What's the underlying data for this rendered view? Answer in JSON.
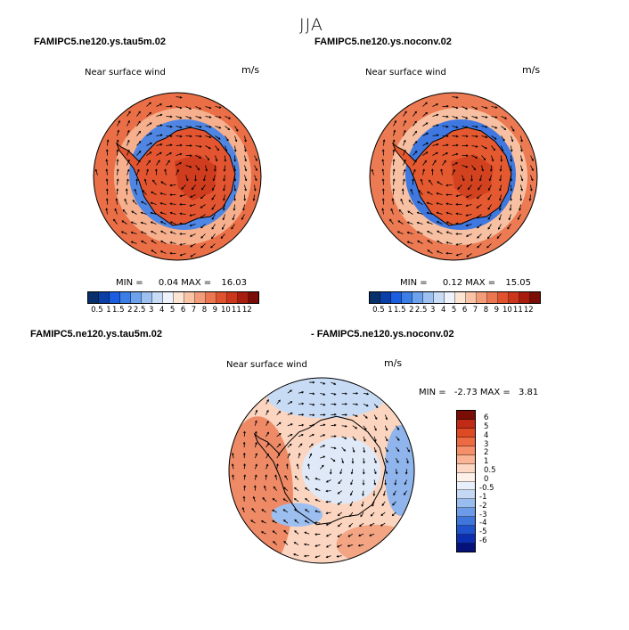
{
  "season": "JJA",
  "panels": [
    {
      "title": "FAMIPC5.ne120.ys.tau5m.02",
      "field": "Near surface wind",
      "units": "m/s",
      "min_label": "MIN =",
      "min": "0.04",
      "max_label": "MAX =",
      "max": "16.03"
    },
    {
      "title": "FAMIPC5.ne120.ys.noconv.02",
      "field": "Near surface wind",
      "units": "m/s",
      "min_label": "MIN =",
      "min": "0.12",
      "max_label": "MAX =",
      "max": "15.05"
    },
    {
      "title_left": "FAMIPC5.ne120.ys.tau5m.02",
      "title_right": "- FAMIPC5.ne120.ys.noconv.02",
      "field": "Near surface wind",
      "units": "m/s",
      "min_label": "MIN =",
      "min": "-2.73",
      "max_label": "MAX =",
      "max": "3.81"
    }
  ],
  "colorbar_speed": {
    "labels": [
      "0.5",
      "1",
      "1.5",
      "2",
      "2.5",
      "3",
      "4",
      "5",
      "6",
      "7",
      "8",
      "9",
      "10",
      "11",
      "12"
    ],
    "colors": [
      "#08306b",
      "#0b3fa8",
      "#1a5de0",
      "#3b7fe6",
      "#6fa2ec",
      "#9dc0f1",
      "#c9dcf6",
      "#eef3fb",
      "#fde4d3",
      "#f9c3a6",
      "#f39c7a",
      "#ec7650",
      "#e0512e",
      "#cc361b",
      "#a91d0e",
      "#7a0d06"
    ]
  },
  "colorbar_diff": {
    "labels": [
      "6",
      "5",
      "4",
      "3",
      "2",
      "1",
      "0.5",
      "0",
      "-0.5",
      "-1",
      "-2",
      "-3",
      "-4",
      "-5",
      "-6"
    ],
    "colors": [
      "#7a0d06",
      "#c12a14",
      "#de4a24",
      "#ec6b42",
      "#f48f69",
      "#f8b494",
      "#fcd7c3",
      "#fdf1ea",
      "#e7f0fb",
      "#c5d9f4",
      "#99bdee",
      "#6c9be7",
      "#3e76dc",
      "#1f52cd",
      "#0c2eb0",
      "#05127a"
    ]
  }
}
